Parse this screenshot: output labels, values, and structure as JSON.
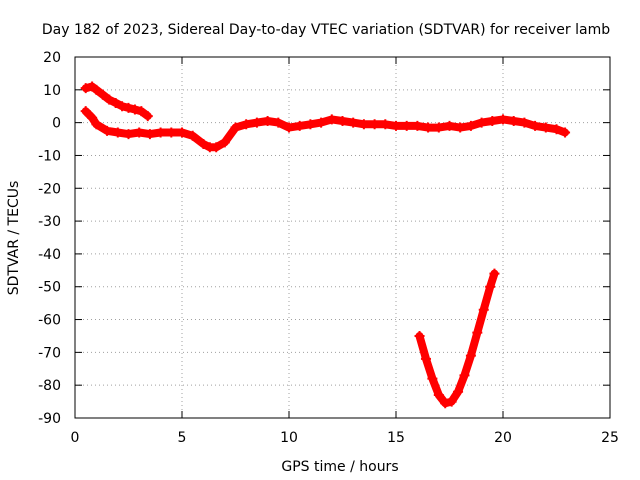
{
  "chart_data": {
    "type": "scatter",
    "title": "Day 182 of 2023, Sidereal Day-to-day VTEC variation (SDTVAR) for receiver lamb",
    "xlabel": "GPS time / hours",
    "ylabel": "SDTVAR / TECUs",
    "xlim": [
      0,
      25
    ],
    "ylim": [
      -90,
      20
    ],
    "xticks": [
      0,
      5,
      10,
      15,
      20,
      25
    ],
    "yticks": [
      20,
      10,
      0,
      -10,
      -20,
      -30,
      -40,
      -50,
      -60,
      -70,
      -80,
      -90
    ],
    "grid": true,
    "color": "#ff0000",
    "series": [
      {
        "name": "upper-track-early",
        "x": [
          0.5,
          0.8,
          1.0,
          1.3,
          1.6,
          1.9,
          2.2,
          2.5,
          2.8,
          3.1,
          3.4
        ],
        "y": [
          10.5,
          11,
          10,
          8.5,
          7,
          6,
          5,
          4.5,
          4,
          3.5,
          2
        ]
      },
      {
        "name": "main-track",
        "x": [
          0.5,
          0.8,
          1.0,
          1.5,
          2.0,
          2.5,
          3.0,
          3.5,
          4.0,
          4.5,
          5.0,
          5.5,
          6.0,
          6.3,
          6.6,
          7.0,
          7.5,
          8.0,
          8.5,
          9.0,
          9.5,
          10.0,
          10.5,
          11.0,
          11.5,
          12.0,
          12.5,
          13.0,
          13.5,
          14.0,
          14.5,
          15.0,
          15.5,
          16.0,
          16.5,
          17.0,
          17.5,
          18.0,
          18.5,
          19.0,
          19.5,
          20.0,
          20.5,
          21.0,
          21.5,
          22.0,
          22.5,
          22.9
        ],
        "y": [
          3.5,
          1.5,
          -0.5,
          -2.5,
          -3,
          -3.5,
          -3,
          -3.5,
          -3,
          -3,
          -3,
          -4,
          -6.5,
          -7.5,
          -7.5,
          -6,
          -1.5,
          -0.5,
          0,
          0.5,
          0,
          -1.5,
          -1,
          -0.5,
          0,
          1,
          0.5,
          0,
          -0.5,
          -0.5,
          -0.5,
          -1,
          -1,
          -1,
          -1.5,
          -1.5,
          -1,
          -1.5,
          -1,
          0,
          0.5,
          1,
          0.5,
          0,
          -1,
          -1.5,
          -2,
          -3
        ]
      },
      {
        "name": "lower-arc",
        "x": [
          16.1,
          16.4,
          16.7,
          17.0,
          17.3,
          17.6,
          17.9,
          18.2,
          18.5,
          18.8,
          19.1,
          19.4,
          19.6
        ],
        "y": [
          -65,
          -72,
          -78,
          -83,
          -85.5,
          -85,
          -82,
          -77,
          -71,
          -64,
          -57,
          -50,
          -46
        ]
      }
    ]
  }
}
